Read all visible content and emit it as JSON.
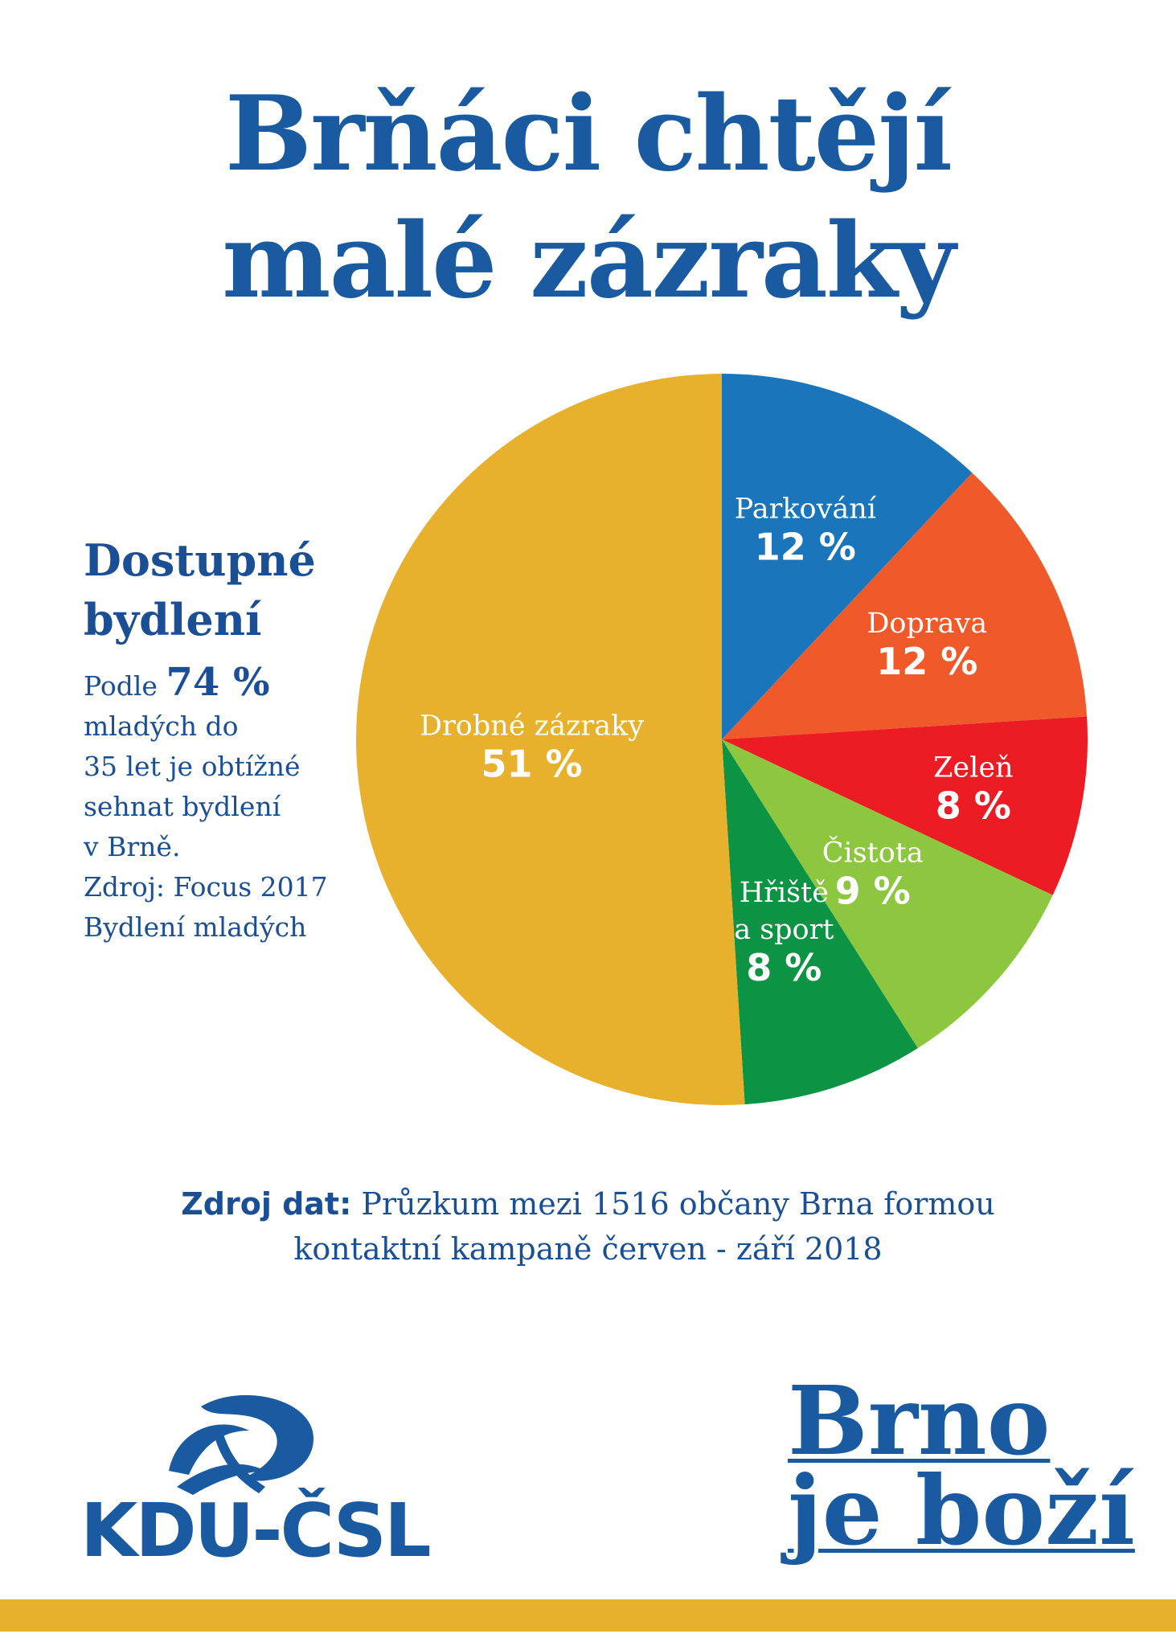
{
  "title": {
    "line1": "Brňáci chtějí",
    "line2": "malé zázraky"
  },
  "sidebar": {
    "heading1": "Dostupné",
    "heading2": "bydlení",
    "prefix": "Podle",
    "percent": "74 %",
    "line1": "mladých do",
    "line2": "35 let je obtížné",
    "line3": "sehnat bydlení",
    "line4": "v Brně.",
    "line5": "Zdroj: Focus 2017",
    "line6": "Bydlení mladých"
  },
  "chart_data": {
    "type": "pie",
    "unit": "%",
    "slices": [
      {
        "label": [
          "Parkování"
        ],
        "value": 12,
        "color": "#1b75bb"
      },
      {
        "label": [
          "Doprava"
        ],
        "value": 12,
        "color": "#f05a2a"
      },
      {
        "label": [
          "Zeleň"
        ],
        "value": 8,
        "color": "#ec1c24"
      },
      {
        "label": [
          "Čistota"
        ],
        "value": 9,
        "color": "#8dc63f"
      },
      {
        "label": [
          "Hřiště",
          "a sport"
        ],
        "value": 8,
        "color": "#0c9444"
      },
      {
        "label": [
          "Drobné zázraky"
        ],
        "value": 51,
        "color": "#e8b12d"
      }
    ]
  },
  "source": {
    "bold": "Zdroj dat:",
    "rest": "Průzkum mezi 1516 občany Brna formou",
    "line2": "kontaktní kampaně červen - září 2018"
  },
  "logo": {
    "text": "KDU-ČSL"
  },
  "slogan": {
    "line1": "Brno",
    "line2": "je boží"
  },
  "colors": {
    "brand_blue": "#1a5aa0",
    "accent_yellow": "#e8b12d"
  }
}
